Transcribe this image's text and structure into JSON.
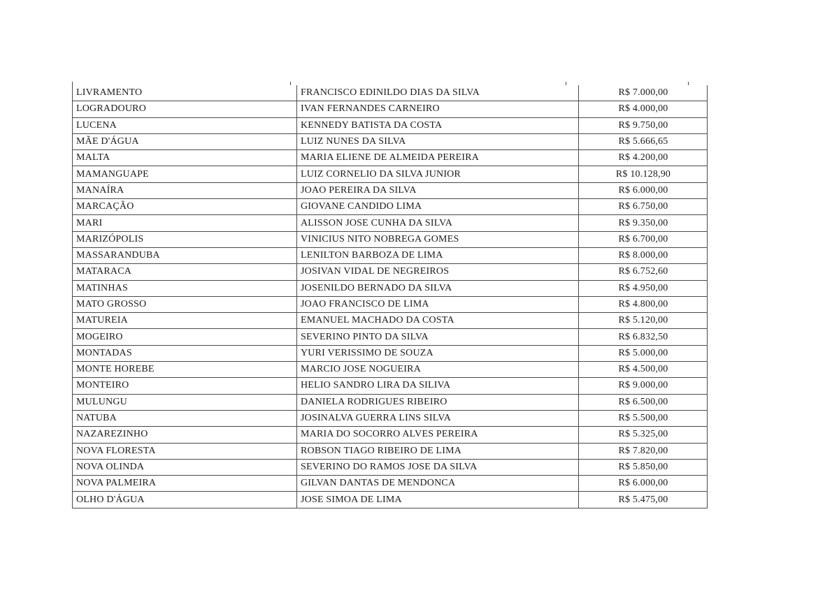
{
  "page": {
    "background_color": "#ffffff"
  },
  "table": {
    "border_color": "#4a4a4a",
    "text_color": "#1b1b1b",
    "currency_prefix": "R$",
    "rows": [
      {
        "municipality": "LIVRAMENTO",
        "beneficiary": "FRANCISCO EDINILDO DIAS DA SILVA",
        "amount": "R$ 7.000,00"
      },
      {
        "municipality": "LOGRADOURO",
        "beneficiary": "IVAN FERNANDES CARNEIRO",
        "amount": "R$ 4.000,00"
      },
      {
        "municipality": "LUCENA",
        "beneficiary": "KENNEDY BATISTA DA COSTA",
        "amount": "R$ 9.750,00"
      },
      {
        "municipality": "MÃE D'ÁGUA",
        "beneficiary": "LUIZ NUNES DA SILVA",
        "amount": "R$ 5.666,65"
      },
      {
        "municipality": "MALTA",
        "beneficiary": "MARIA ELIENE DE ALMEIDA PEREIRA",
        "amount": "R$ 4.200,00"
      },
      {
        "municipality": "MAMANGUAPE",
        "beneficiary": "LUIZ CORNELIO DA SILVA JUNIOR",
        "amount": "R$ 10.128,90"
      },
      {
        "municipality": "MANAÍRA",
        "beneficiary": "JOAO PEREIRA DA SILVA",
        "amount": "R$ 6.000,00"
      },
      {
        "municipality": "MARCAÇÃO",
        "beneficiary": "GIOVANE CANDIDO LIMA",
        "amount": "R$ 6.750,00"
      },
      {
        "municipality": "MARI",
        "beneficiary": "ALISSON JOSE CUNHA DA SILVA",
        "amount": "R$ 9.350,00"
      },
      {
        "municipality": "MARIZÓPOLIS",
        "beneficiary": "VINICIUS NITO NOBREGA GOMES",
        "amount": "R$ 6.700,00"
      },
      {
        "municipality": "MASSARANDUBA",
        "beneficiary": "LENILTON BARBOZA DE LIMA",
        "amount": "R$ 8.000,00"
      },
      {
        "municipality": "MATARACA",
        "beneficiary": "JOSIVAN VIDAL DE NEGREIROS",
        "amount": "R$ 6.752,60"
      },
      {
        "municipality": "MATINHAS",
        "beneficiary": "JOSENILDO BERNADO DA SILVA",
        "amount": "R$ 4.950,00"
      },
      {
        "municipality": "MATO GROSSO",
        "beneficiary": "JOAO FRANCISCO DE LIMA",
        "amount": "R$ 4.800,00"
      },
      {
        "municipality": "MATUREIA",
        "beneficiary": "EMANUEL MACHADO DA COSTA",
        "amount": "R$ 5.120,00"
      },
      {
        "municipality": "MOGEIRO",
        "beneficiary": "SEVERINO PINTO DA SILVA",
        "amount": "R$ 6.832,50"
      },
      {
        "municipality": "MONTADAS",
        "beneficiary": "YURI VERISSIMO DE SOUZA",
        "amount": "R$ 5.000,00"
      },
      {
        "municipality": "MONTE HOREBE",
        "beneficiary": "MARCIO JOSE NOGUEIRA",
        "amount": "R$ 4.500,00"
      },
      {
        "municipality": "MONTEIRO",
        "beneficiary": "HELIO SANDRO LIRA DA SILIVA",
        "amount": "R$ 9.000,00"
      },
      {
        "municipality": "MULUNGU",
        "beneficiary": "DANIELA RODRIGUES RIBEIRO",
        "amount": "R$ 6.500,00"
      },
      {
        "municipality": "NATUBA",
        "beneficiary": "JOSINALVA GUERRA LINS SILVA",
        "amount": "R$ 5.500,00"
      },
      {
        "municipality": "NAZAREZINHO",
        "beneficiary": "MARIA DO SOCORRO ALVES PEREIRA",
        "amount": "R$ 5.325,00"
      },
      {
        "municipality": "NOVA FLORESTA",
        "beneficiary": "ROBSON TIAGO RIBEIRO DE LIMA",
        "amount": "R$ 7.820,00"
      },
      {
        "municipality": "NOVA OLINDA",
        "beneficiary": "SEVERINO DO RAMOS JOSE DA SILVA",
        "amount": "R$ 5.850,00"
      },
      {
        "municipality": "NOVA PALMEIRA",
        "beneficiary": "GILVAN DANTAS DE MENDONCA",
        "amount": "R$ 6.000,00"
      },
      {
        "municipality": "OLHO D'ÁGUA",
        "beneficiary": "JOSE SIMOA DE LIMA",
        "amount": "R$ 5.475,00"
      }
    ]
  }
}
